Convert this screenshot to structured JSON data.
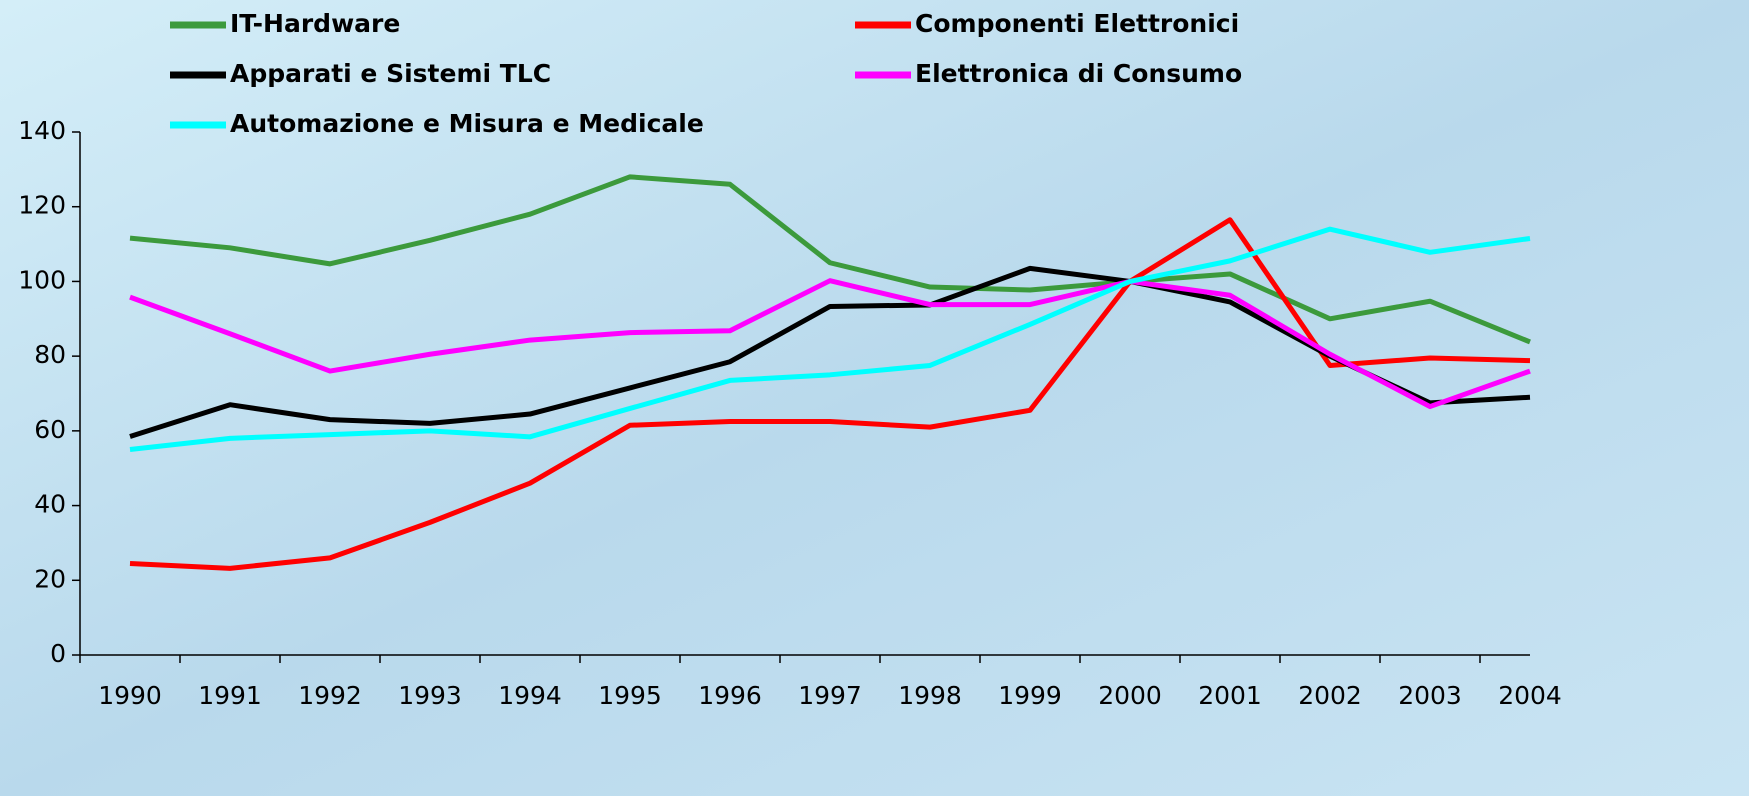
{
  "chart_data": {
    "type": "line",
    "categories": [
      "1990",
      "1991",
      "1992",
      "1993",
      "1994",
      "1995",
      "1996",
      "1997",
      "1998",
      "1999",
      "2000",
      "2001",
      "2002",
      "2003",
      "2004"
    ],
    "series": [
      {
        "name": "IT-Hardware",
        "color": "#3c9a3c",
        "values": [
          111.6,
          109,
          104.7,
          111,
          118,
          128,
          126,
          105,
          98.5,
          97.7,
          100,
          102,
          90,
          94.7,
          83.8
        ]
      },
      {
        "name": "Componenti Elettronici",
        "color": "#ff0000",
        "values": [
          24.5,
          23.2,
          26,
          35.5,
          46,
          61.5,
          62.5,
          62.5,
          61,
          65.5,
          100,
          116.5,
          77.5,
          79.5,
          78.8
        ]
      },
      {
        "name": "Apparati e Sistemi TLC",
        "color": "#000000",
        "values": [
          58.5,
          67,
          63,
          62,
          64.5,
          71.5,
          78.5,
          93.3,
          93.7,
          103.5,
          100,
          94.5,
          80,
          67.5,
          69
        ]
      },
      {
        "name": "Elettronica di Consumo",
        "color": "#ff00ff",
        "values": [
          95.8,
          86,
          76,
          80.5,
          84.3,
          86.3,
          86.8,
          100.2,
          93.8,
          93.8,
          100,
          96.3,
          80.5,
          66.5,
          76
        ]
      },
      {
        "name": "Automazione e Misura e Medicale",
        "color": "#00ffff",
        "values": [
          55,
          58,
          59,
          60,
          58.4,
          66,
          73.5,
          75,
          77.5,
          88.5,
          100,
          105.5,
          114,
          107.8,
          111.5
        ]
      }
    ],
    "ylim": [
      0,
      140
    ],
    "yticks": [
      0,
      20,
      40,
      60,
      80,
      100,
      120,
      140
    ],
    "grid": false
  }
}
